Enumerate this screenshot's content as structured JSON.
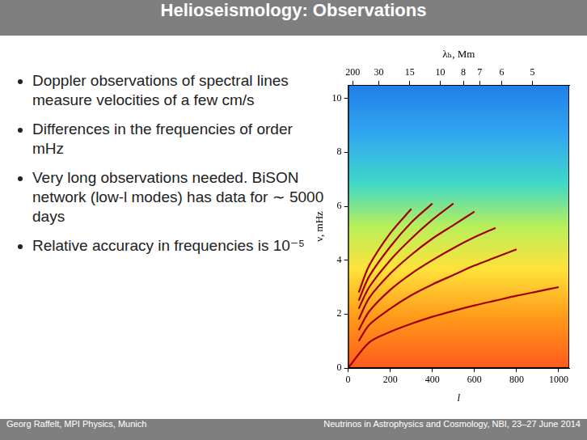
{
  "title": "Helioseismology: Observations",
  "bullets": [
    "Doppler observations of spectral lines measure velocities of a few cm/s",
    "Differences in the frequencies of order mHz",
    "Very long observations needed. BiSON network (low-l modes) has data for ∼ 5000 days",
    "Relative accuracy in frequencies is 10⁻⁵"
  ],
  "footer": {
    "left": "Georg Raffelt, MPI Physics, Munich",
    "right": "Neutrinos in Astrophysics and Cosmology, NBI, 23–27 June 2014"
  },
  "chart_data": {
    "type": "line",
    "x_label": "l",
    "y_label": "ν, mHz",
    "x2_label": "λₕ, Mm",
    "xlim": [
      0,
      1050
    ],
    "ylim": [
      0,
      10.5
    ],
    "xticks": [
      0,
      200,
      400,
      600,
      800,
      1000
    ],
    "yticks": [
      0,
      2,
      4,
      6,
      8,
      10
    ],
    "x2ticks": [
      {
        "value": 22,
        "label": "200"
      },
      {
        "value": 146,
        "label": "30"
      },
      {
        "value": 292,
        "label": "15"
      },
      {
        "value": 437,
        "label": "10"
      },
      {
        "value": 547,
        "label": "8"
      },
      {
        "value": 625,
        "label": "7"
      },
      {
        "value": 729,
        "label": "6"
      },
      {
        "value": 875,
        "label": "5"
      }
    ],
    "grid": false,
    "series": [
      {
        "color": "#a00000",
        "x": [
          0,
          100,
          200,
          300,
          400,
          500,
          600,
          700,
          800,
          900,
          1000
        ],
        "values": [
          0,
          0.95,
          1.34,
          1.64,
          1.9,
          2.12,
          2.32,
          2.5,
          2.68,
          2.84,
          3.0
        ]
      },
      {
        "color": "#a00000",
        "x": [
          50,
          100,
          200,
          300,
          400,
          500,
          600,
          700,
          800
        ],
        "values": [
          1.0,
          1.6,
          2.2,
          2.7,
          3.1,
          3.45,
          3.8,
          4.1,
          4.4
        ]
      },
      {
        "color": "#a00000",
        "x": [
          50,
          100,
          200,
          300,
          400,
          500,
          600,
          700
        ],
        "values": [
          1.4,
          2.1,
          2.9,
          3.5,
          4.0,
          4.45,
          4.85,
          5.2
        ]
      },
      {
        "color": "#a00000",
        "x": [
          50,
          100,
          200,
          300,
          400,
          500,
          600
        ],
        "values": [
          1.8,
          2.6,
          3.5,
          4.2,
          4.8,
          5.3,
          5.8
        ]
      },
      {
        "color": "#a00000",
        "x": [
          50,
          100,
          200,
          300,
          400,
          500
        ],
        "values": [
          2.2,
          3.0,
          4.0,
          4.8,
          5.5,
          6.1
        ]
      },
      {
        "color": "#a00000",
        "x": [
          50,
          100,
          200,
          300,
          400
        ],
        "values": [
          2.5,
          3.4,
          4.5,
          5.4,
          6.1
        ]
      },
      {
        "color": "#a00000",
        "x": [
          50,
          100,
          200,
          300
        ],
        "values": [
          2.8,
          3.8,
          5.0,
          5.9
        ]
      }
    ]
  }
}
